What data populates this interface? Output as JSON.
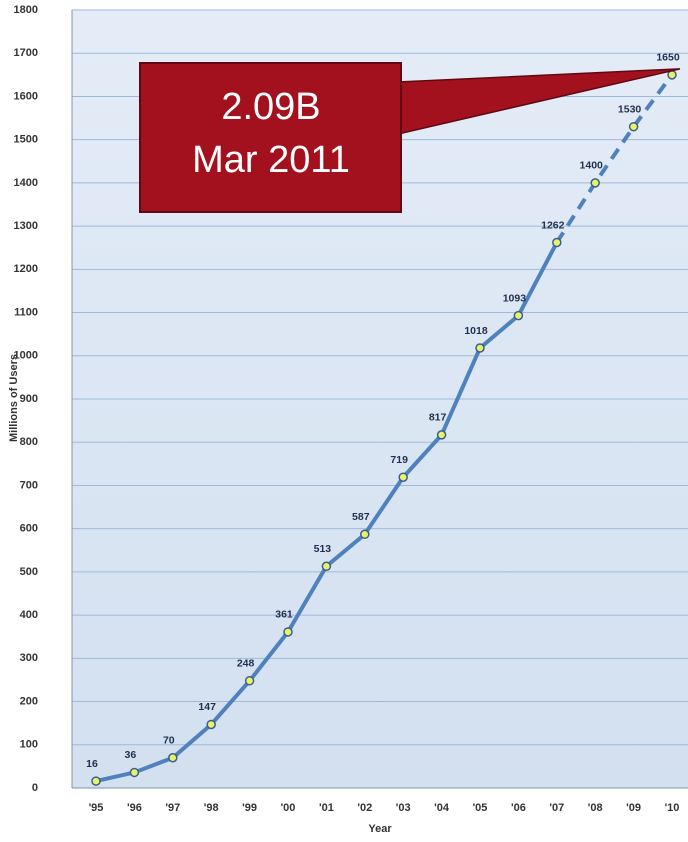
{
  "chart_data": {
    "type": "line",
    "categories": [
      "'95",
      "'96",
      "'97",
      "'98",
      "'99",
      "'00",
      "'01",
      "'02",
      "'03",
      "'04",
      "'05",
      "'06",
      "'07",
      "'08",
      "'09",
      "'10"
    ],
    "series": [
      {
        "name": "Millions of Users",
        "color": "#4f81bd",
        "values": [
          16,
          36,
          70,
          147,
          248,
          361,
          513,
          587,
          719,
          817,
          1018,
          1093,
          1262,
          1400,
          1530,
          1650
        ]
      }
    ],
    "dashed_from": 12,
    "xlabel": "Year",
    "ylabel": "Millions of Users",
    "ylim": [
      0,
      1800
    ],
    "yticks": [
      0,
      100,
      200,
      300,
      400,
      500,
      600,
      700,
      800,
      900,
      1000,
      1100,
      1200,
      1300,
      1400,
      1500,
      1600,
      1700,
      1800
    ],
    "grid": true,
    "annotation": [
      "2.09B",
      "Mar 2011"
    ]
  }
}
